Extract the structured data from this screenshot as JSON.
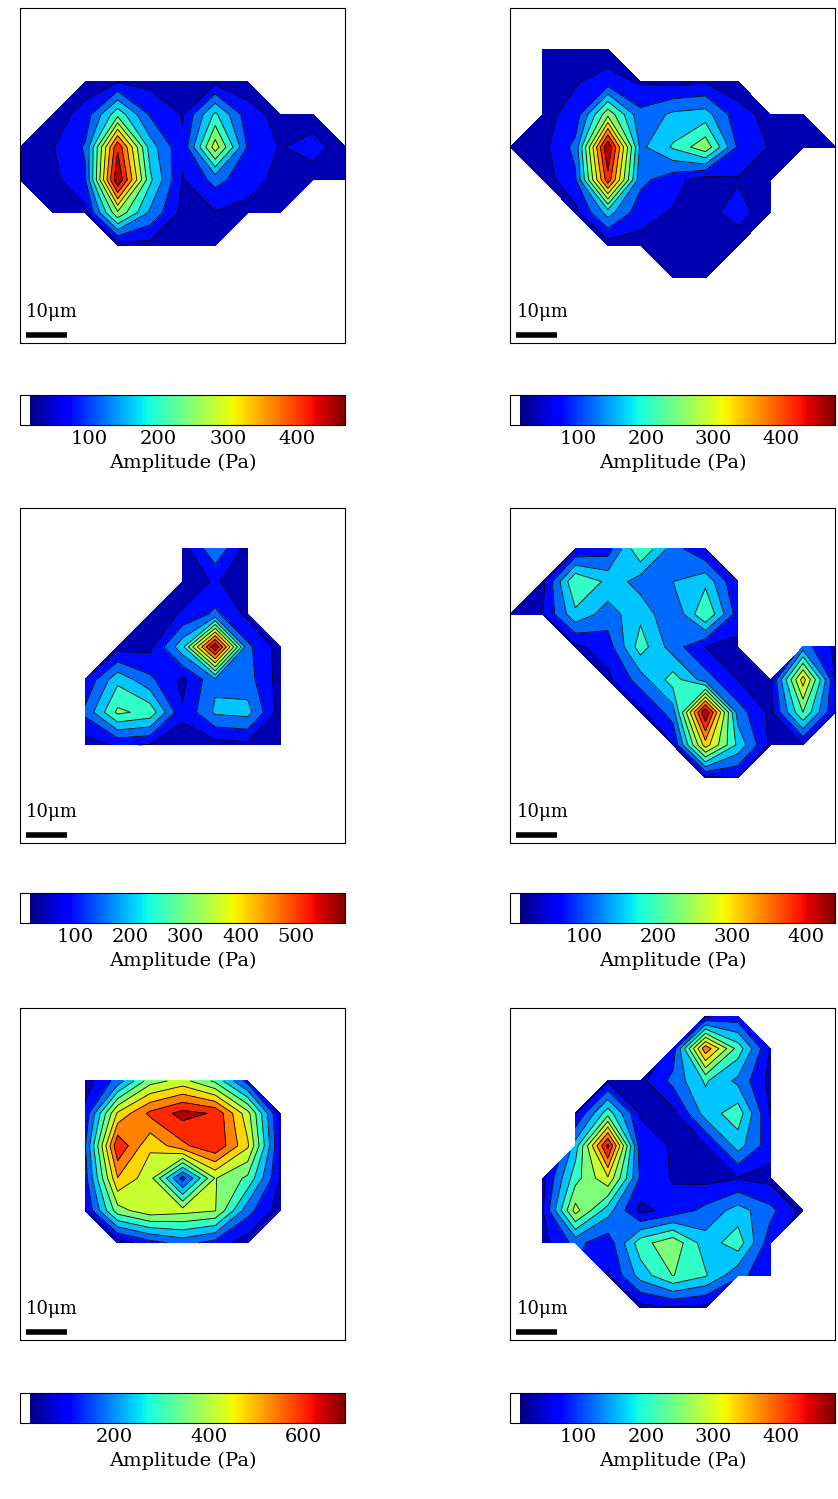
{
  "chart_data": [
    {
      "type": "contour",
      "xlim": [
        0,
        80
      ],
      "ylim": [
        0,
        82
      ],
      "tick_labels": false,
      "scale_bar": {
        "length": 10,
        "label": "10μm"
      },
      "x": [
        0,
        8,
        16,
        24,
        32,
        40,
        48,
        56,
        64,
        72,
        80
      ],
      "y": [
        0,
        8,
        16,
        24,
        32,
        40,
        48,
        56,
        64,
        72,
        80
      ],
      "cells": [
        [
          null,
          null,
          null,
          null,
          null,
          null,
          null,
          null,
          null,
          null,
          null
        ],
        [
          null,
          null,
          null,
          null,
          null,
          null,
          null,
          null,
          null,
          null,
          null
        ],
        [
          null,
          null,
          null,
          null,
          null,
          null,
          null,
          null,
          null,
          null,
          null
        ],
        [
          null,
          null,
          null,
          20,
          30,
          25,
          20,
          null,
          null,
          null,
          null
        ],
        [
          null,
          15,
          30,
          250,
          120,
          30,
          40,
          30,
          15,
          null,
          null
        ],
        [
          20,
          30,
          80,
          470,
          180,
          40,
          100,
          60,
          30,
          20,
          15
        ],
        [
          15,
          40,
          90,
          420,
          150,
          50,
          280,
          80,
          40,
          60,
          20
        ],
        [
          null,
          20,
          60,
          200,
          80,
          40,
          180,
          60,
          30,
          20,
          null
        ],
        [
          null,
          null,
          20,
          40,
          30,
          20,
          30,
          20,
          null,
          null,
          null
        ],
        [
          null,
          null,
          null,
          null,
          null,
          null,
          null,
          null,
          null,
          null,
          null
        ],
        [
          null,
          null,
          null,
          null,
          null,
          null,
          null,
          null,
          null,
          null,
          null
        ]
      ],
      "colorbar": {
        "range": [
          0,
          470
        ],
        "ticks": [
          100,
          200,
          300,
          400
        ],
        "label": "Amplitude (Pa)"
      }
    },
    {
      "type": "contour",
      "xlim": [
        0,
        80
      ],
      "ylim": [
        0,
        82
      ],
      "tick_labels": false,
      "scale_bar": {
        "length": 10,
        "label": "10μm"
      },
      "x": [
        0,
        8,
        16,
        24,
        32,
        40,
        48,
        56,
        64,
        72,
        80
      ],
      "y": [
        0,
        8,
        16,
        24,
        32,
        40,
        48,
        56,
        64,
        72,
        80
      ],
      "cells": [
        [
          null,
          null,
          null,
          null,
          null,
          null,
          null,
          null,
          null,
          null,
          null
        ],
        [
          null,
          null,
          null,
          null,
          null,
          null,
          null,
          null,
          null,
          null,
          null
        ],
        [
          null,
          null,
          null,
          null,
          null,
          15,
          15,
          null,
          null,
          null,
          null
        ],
        [
          null,
          null,
          null,
          20,
          30,
          30,
          40,
          20,
          null,
          null,
          null
        ],
        [
          null,
          null,
          30,
          150,
          60,
          40,
          30,
          60,
          20,
          null,
          null
        ],
        [
          null,
          20,
          80,
          420,
          100,
          60,
          20,
          40,
          30,
          null,
          null
        ],
        [
          20,
          30,
          100,
          480,
          120,
          180,
          250,
          80,
          40,
          20,
          40
        ],
        [
          null,
          30,
          60,
          250,
          100,
          140,
          150,
          60,
          30,
          15,
          null
        ],
        [
          null,
          30,
          40,
          60,
          40,
          30,
          40,
          20,
          null,
          null,
          null
        ],
        [
          null,
          20,
          30,
          20,
          null,
          null,
          null,
          null,
          null,
          null,
          null
        ],
        [
          null,
          null,
          null,
          null,
          null,
          null,
          null,
          null,
          null,
          null,
          null
        ]
      ],
      "colorbar": {
        "range": [
          0,
          480
        ],
        "ticks": [
          100,
          200,
          300,
          400
        ],
        "label": "Amplitude (Pa)"
      }
    },
    {
      "type": "contour",
      "xlim": [
        0,
        80
      ],
      "ylim": [
        0,
        82
      ],
      "tick_labels": false,
      "scale_bar": {
        "length": 10,
        "label": "10μm"
      },
      "x": [
        0,
        8,
        16,
        24,
        32,
        40,
        48,
        56,
        64,
        72,
        80
      ],
      "y": [
        0,
        8,
        16,
        24,
        32,
        40,
        48,
        56,
        64,
        72,
        80
      ],
      "cells": [
        [
          null,
          null,
          null,
          null,
          null,
          null,
          null,
          null,
          null,
          null,
          null
        ],
        [
          null,
          null,
          null,
          null,
          null,
          null,
          null,
          null,
          null,
          null,
          null
        ],
        [
          null,
          null,
          null,
          null,
          null,
          null,
          null,
          null,
          null,
          null,
          null
        ],
        [
          null,
          null,
          30,
          60,
          50,
          40,
          30,
          40,
          20,
          null,
          null
        ],
        [
          null,
          null,
          120,
          280,
          250,
          60,
          170,
          180,
          30,
          null,
          null
        ],
        [
          null,
          null,
          60,
          200,
          120,
          40,
          150,
          130,
          30,
          null,
          null
        ],
        [
          null,
          null,
          null,
          30,
          40,
          200,
          590,
          120,
          30,
          null,
          null
        ],
        [
          null,
          null,
          null,
          null,
          20,
          60,
          120,
          40,
          null,
          null,
          null
        ],
        [
          null,
          null,
          null,
          null,
          null,
          20,
          60,
          20,
          null,
          null,
          null
        ],
        [
          null,
          null,
          null,
          null,
          null,
          30,
          150,
          30,
          null,
          null,
          null
        ],
        [
          null,
          null,
          null,
          null,
          null,
          null,
          null,
          null,
          null,
          null,
          null
        ]
      ],
      "colorbar": {
        "range": [
          0,
          590
        ],
        "ticks": [
          100,
          200,
          300,
          400,
          500
        ],
        "label": "Amplitude (Pa)"
      }
    },
    {
      "type": "contour",
      "xlim": [
        0,
        80
      ],
      "ylim": [
        0,
        82
      ],
      "tick_labels": false,
      "scale_bar": {
        "length": 10,
        "label": "10μm"
      },
      "x": [
        0,
        8,
        16,
        24,
        32,
        40,
        48,
        56,
        64,
        72,
        80
      ],
      "y": [
        0,
        8,
        16,
        24,
        32,
        40,
        48,
        56,
        64,
        72,
        80
      ],
      "cells": [
        [
          null,
          null,
          null,
          null,
          null,
          null,
          null,
          null,
          null,
          null,
          null
        ],
        [
          null,
          null,
          null,
          null,
          null,
          null,
          null,
          null,
          null,
          null,
          null
        ],
        [
          null,
          null,
          null,
          null,
          null,
          null,
          30,
          40,
          null,
          null,
          null
        ],
        [
          null,
          null,
          null,
          null,
          null,
          40,
          300,
          150,
          30,
          40,
          null
        ],
        [
          null,
          null,
          null,
          null,
          30,
          100,
          440,
          100,
          30,
          200,
          40
        ],
        [
          null,
          null,
          null,
          30,
          100,
          180,
          100,
          40,
          30,
          300,
          40
        ],
        [
          null,
          null,
          30,
          60,
          180,
          100,
          40,
          30,
          null,
          100,
          30
        ],
        [
          20,
          40,
          150,
          100,
          150,
          80,
          200,
          60,
          null,
          null,
          null
        ],
        [
          null,
          30,
          200,
          150,
          100,
          120,
          150,
          40,
          null,
          null,
          null
        ],
        [
          null,
          null,
          40,
          60,
          200,
          100,
          40,
          null,
          null,
          null,
          null
        ],
        [
          null,
          null,
          null,
          null,
          null,
          null,
          null,
          null,
          null,
          null,
          null
        ]
      ],
      "colorbar": {
        "range": [
          0,
          440
        ],
        "ticks": [
          100,
          200,
          300,
          400
        ],
        "label": "Amplitude (Pa)"
      }
    },
    {
      "type": "contour",
      "xlim": [
        0,
        80
      ],
      "ylim": [
        0,
        82
      ],
      "tick_labels": false,
      "scale_bar": {
        "length": 10,
        "label": "10μm"
      },
      "x": [
        0,
        8,
        16,
        24,
        32,
        40,
        48,
        56,
        64,
        72,
        80
      ],
      "y": [
        0,
        8,
        16,
        24,
        32,
        40,
        48,
        56,
        64,
        72,
        80
      ],
      "cells": [
        [
          null,
          null,
          null,
          null,
          null,
          null,
          null,
          null,
          null,
          null,
          null
        ],
        [
          null,
          null,
          null,
          null,
          null,
          null,
          null,
          null,
          null,
          null,
          null
        ],
        [
          null,
          null,
          null,
          null,
          null,
          null,
          null,
          null,
          null,
          null,
          null
        ],
        [
          null,
          null,
          null,
          30,
          100,
          150,
          100,
          30,
          null,
          null,
          null
        ],
        [
          null,
          null,
          60,
          350,
          420,
          400,
          380,
          150,
          30,
          null,
          null
        ],
        [
          null,
          null,
          100,
          500,
          400,
          100,
          380,
          300,
          60,
          null,
          null
        ],
        [
          null,
          null,
          120,
          620,
          450,
          550,
          620,
          450,
          60,
          null,
          null
        ],
        [
          null,
          null,
          80,
          450,
          580,
          650,
          620,
          400,
          50,
          null,
          null
        ],
        [
          null,
          null,
          30,
          150,
          350,
          400,
          300,
          100,
          null,
          null,
          null
        ],
        [
          null,
          null,
          null,
          null,
          null,
          null,
          null,
          null,
          null,
          null,
          null
        ],
        [
          null,
          null,
          null,
          null,
          null,
          null,
          null,
          null,
          null,
          null,
          null
        ]
      ],
      "colorbar": {
        "range": [
          0,
          690
        ],
        "ticks": [
          200,
          400,
          600
        ],
        "label": "Amplitude (Pa)"
      }
    },
    {
      "type": "contour",
      "xlim": [
        0,
        80
      ],
      "ylim": [
        0,
        82
      ],
      "tick_labels": false,
      "scale_bar": {
        "length": 10,
        "label": "10μm"
      },
      "x": [
        0,
        8,
        16,
        24,
        32,
        40,
        48,
        56,
        64,
        72,
        80
      ],
      "y": [
        0,
        8,
        16,
        24,
        32,
        40,
        48,
        56,
        64,
        72,
        80
      ],
      "cells": [
        [
          null,
          null,
          null,
          null,
          null,
          null,
          null,
          null,
          null,
          null,
          null
        ],
        [
          null,
          null,
          null,
          null,
          30,
          40,
          30,
          null,
          null,
          null,
          null
        ],
        [
          null,
          null,
          null,
          40,
          150,
          220,
          180,
          100,
          60,
          null,
          null
        ],
        [
          null,
          30,
          100,
          60,
          200,
          250,
          150,
          200,
          60,
          null,
          null
        ],
        [
          null,
          40,
          280,
          150,
          30,
          60,
          100,
          150,
          100,
          30,
          null
        ],
        [
          null,
          30,
          200,
          300,
          80,
          40,
          30,
          40,
          30,
          null,
          null
        ],
        [
          null,
          null,
          150,
          450,
          60,
          40,
          40,
          150,
          60,
          null,
          null
        ],
        [
          null,
          null,
          40,
          200,
          40,
          30,
          150,
          200,
          40,
          null,
          null
        ],
        [
          null,
          null,
          null,
          40,
          30,
          100,
          180,
          120,
          30,
          null,
          null
        ],
        [
          null,
          null,
          null,
          null,
          null,
          60,
          380,
          200,
          40,
          null,
          null
        ],
        [
          null,
          null,
          null,
          null,
          null,
          null,
          40,
          60,
          null,
          null,
          null
        ]
      ],
      "colorbar": {
        "range": [
          0,
          480
        ],
        "ticks": [
          100,
          200,
          300,
          400
        ],
        "label": "Amplitude (Pa)"
      }
    }
  ]
}
